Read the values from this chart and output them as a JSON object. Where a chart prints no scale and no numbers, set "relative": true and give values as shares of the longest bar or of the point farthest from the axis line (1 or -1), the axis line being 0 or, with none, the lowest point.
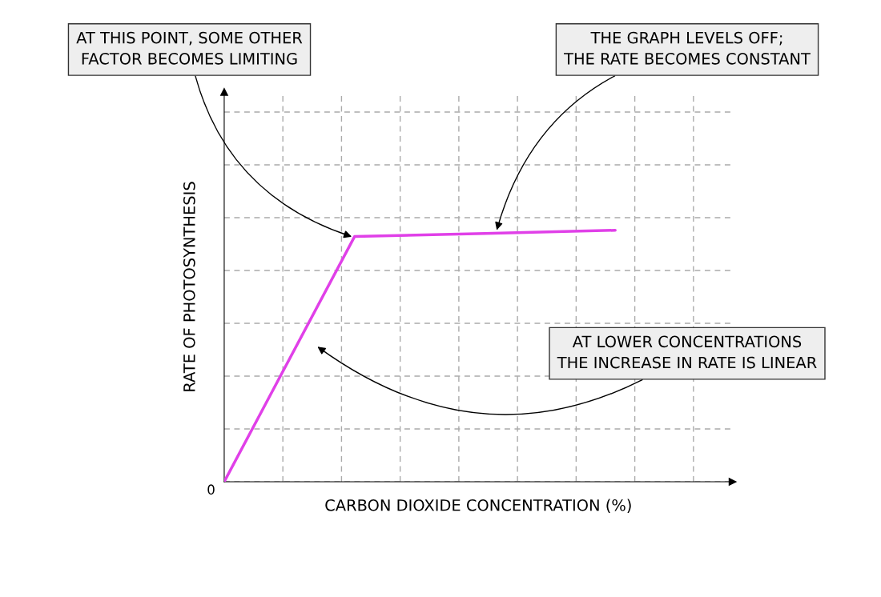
{
  "chart_data": {
    "type": "line",
    "relative": true,
    "xlabel": "CARBON DIOXIDE CONCENTRATION (%)",
    "ylabel": "RATE OF PHOTOSYNTHESIS",
    "categories": [
      null,
      null,
      null,
      null
    ],
    "series": [
      {
        "color": "#e040e8",
        "values": [
          0,
          0.975,
          0.987,
          1
        ]
      }
    ],
    "grid": true,
    "line_style": "solid",
    "marker": "none",
    "annotations": [
      "AT THIS POINT, SOME OTHER\nFACTOR BECOMES LIMITING",
      "THE GRAPH LEVELS OFF;\nTHE RATE BECOMES CONSTANT",
      "AT LOWER CONCENTRATIONS\nTHE INCREASE IN RATE IS LINEAR",
      "0"
    ]
  }
}
